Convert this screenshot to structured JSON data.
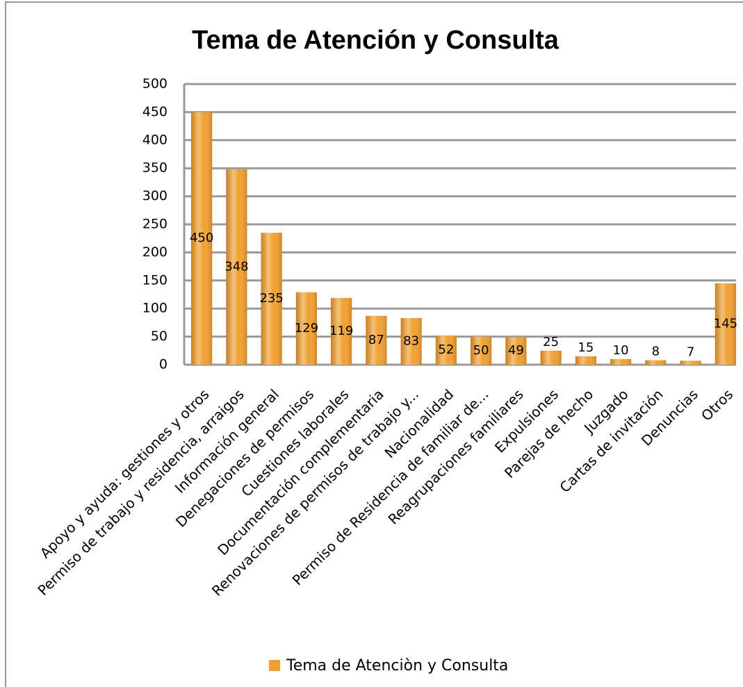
{
  "chart_data": {
    "type": "bar",
    "title": "Tema de Atención y Consulta",
    "categories": [
      "Apoyo y ayuda: gestiones y otros",
      "Permiso de trabajo y residencia, arraigos",
      "Información general",
      "Denegaciones de permisos",
      "Cuestiones laborales",
      "Documentación complementaria",
      "Renovaciones de permisos de trabajo y...",
      "Nacionalidad",
      "Permiso de Residencia de familiar de...",
      "Reagrupaciones familiares",
      "Expulsiones",
      "Parejas de hecho",
      "Juzgado",
      "Cartas de invitación",
      "Denuncias",
      "Otros"
    ],
    "series": [
      {
        "name": "Tema de Atenciòn y Consulta",
        "color": "#f0a030",
        "values": [
          450,
          348,
          235,
          129,
          119,
          87,
          83,
          52,
          50,
          49,
          25,
          15,
          10,
          8,
          7,
          145
        ]
      }
    ],
    "ylim": [
      0,
      500
    ],
    "yticks": [
      0,
      50,
      100,
      150,
      200,
      250,
      300,
      350,
      400,
      450,
      500
    ],
    "grid": true,
    "legend": "bottom"
  }
}
